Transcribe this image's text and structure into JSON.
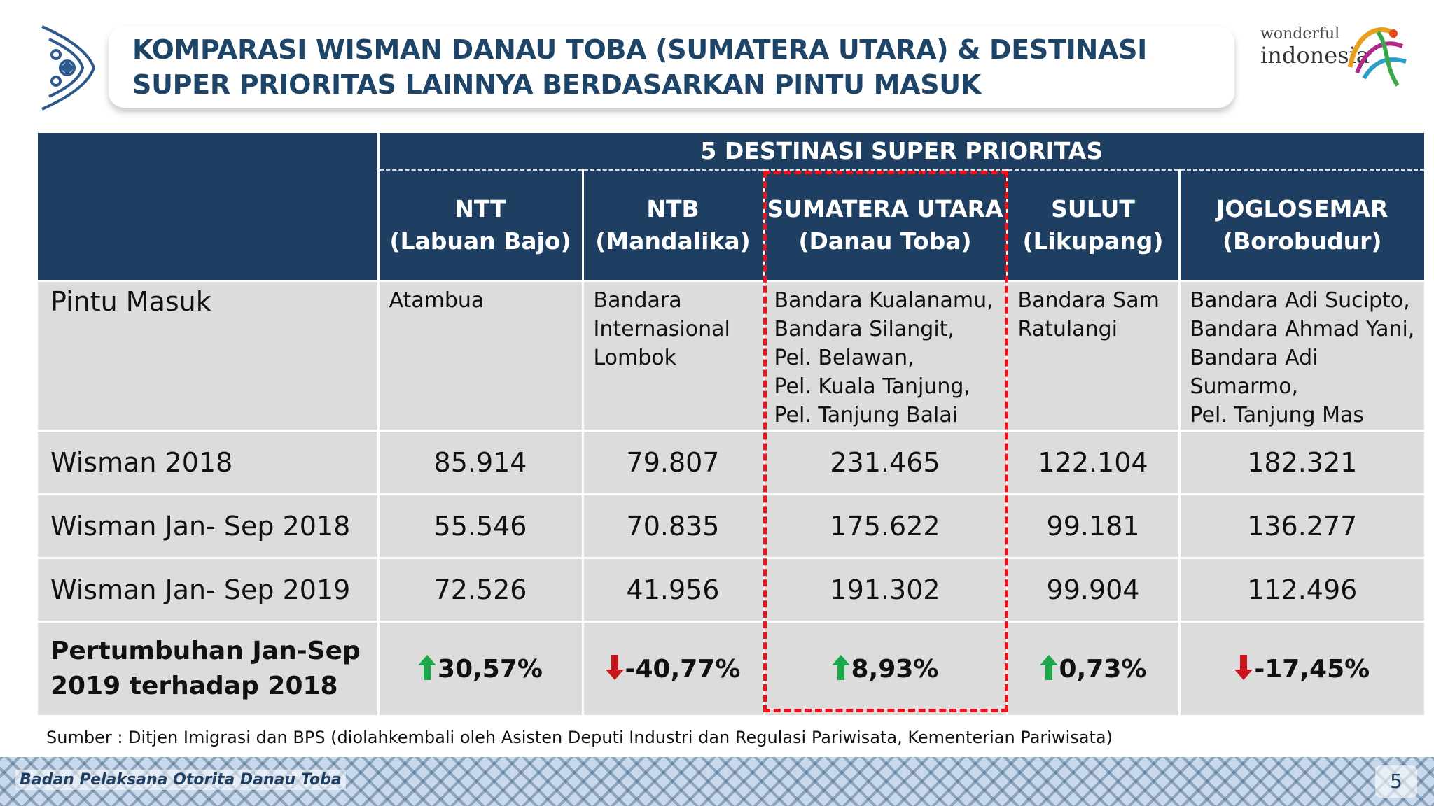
{
  "title": "KOMPARASI WISMAN DANAU TOBA (SUMATERA UTARA) & DESTINASI SUPER PRIORITAS LAINNYA BERDASARKAN PINTU MASUK",
  "logo": {
    "top": "wonderful",
    "bottom": "indonesia"
  },
  "table": {
    "group_header": "5 DESTINASI SUPER PRIORITAS",
    "columns": [
      {
        "name": "NTT",
        "sub": "(Labuan Bajo)"
      },
      {
        "name": "NTB",
        "sub": "(Mandalika)"
      },
      {
        "name": "SUMATERA UTARA",
        "sub": "(Danau Toba)"
      },
      {
        "name": "SULUT",
        "sub": "(Likupang)"
      },
      {
        "name": "JOGLOSEMAR",
        "sub": "(Borobudur)"
      }
    ],
    "rows": {
      "pintu_masuk": {
        "label": "Pintu Masuk",
        "values": [
          [
            "Atambua"
          ],
          [
            "Bandara",
            "Internasional",
            "Lombok"
          ],
          [
            "Bandara Kualanamu,",
            "Bandara Silangit,",
            "Pel. Belawan,",
            "Pel. Kuala Tanjung,",
            "Pel. Tanjung Balai"
          ],
          [
            "Bandara Sam",
            "Ratulangi"
          ],
          [
            "Bandara Adi Sucipto,",
            "Bandara Ahmad Yani,",
            "Bandara Adi Sumarmo,",
            "Pel. Tanjung Mas"
          ]
        ]
      },
      "wisman_2018": {
        "label": "Wisman 2018",
        "values": [
          "85.914",
          "79.807",
          "231.465",
          "122.104",
          "182.321"
        ]
      },
      "wisman_jan_sep_2018": {
        "label": "Wisman Jan- Sep 2018",
        "values": [
          "55.546",
          "70.835",
          "175.622",
          "99.181",
          "136.277"
        ]
      },
      "wisman_jan_sep_2019": {
        "label": "Wisman Jan- Sep 2019",
        "values": [
          "72.526",
          "41.956",
          "191.302",
          "99.904",
          "112.496"
        ]
      },
      "growth": {
        "label_line1": "Pertumbuhan Jan-Sep",
        "label_line2": "2019 terhadap 2018",
        "values": [
          "30,57%",
          "-40,77%",
          "8,93%",
          "0,73%",
          "-17,45%"
        ],
        "directions": [
          "up",
          "down",
          "up",
          "up",
          "down"
        ]
      }
    }
  },
  "colors": {
    "header": "#1e3f62",
    "title": "#1e4568",
    "highlight": "#e8141c",
    "up_arrow": "#1aa84a",
    "down_arrow": "#c8141c"
  },
  "source": "Sumber : Ditjen Imigrasi dan BPS (diolahkembali oleh Asisten Deputi Industri dan Regulasi Pariwisata, Kementerian Pariwisata)",
  "footer": {
    "org": "Badan Pelaksana Otorita Danau Toba",
    "page": "5"
  }
}
